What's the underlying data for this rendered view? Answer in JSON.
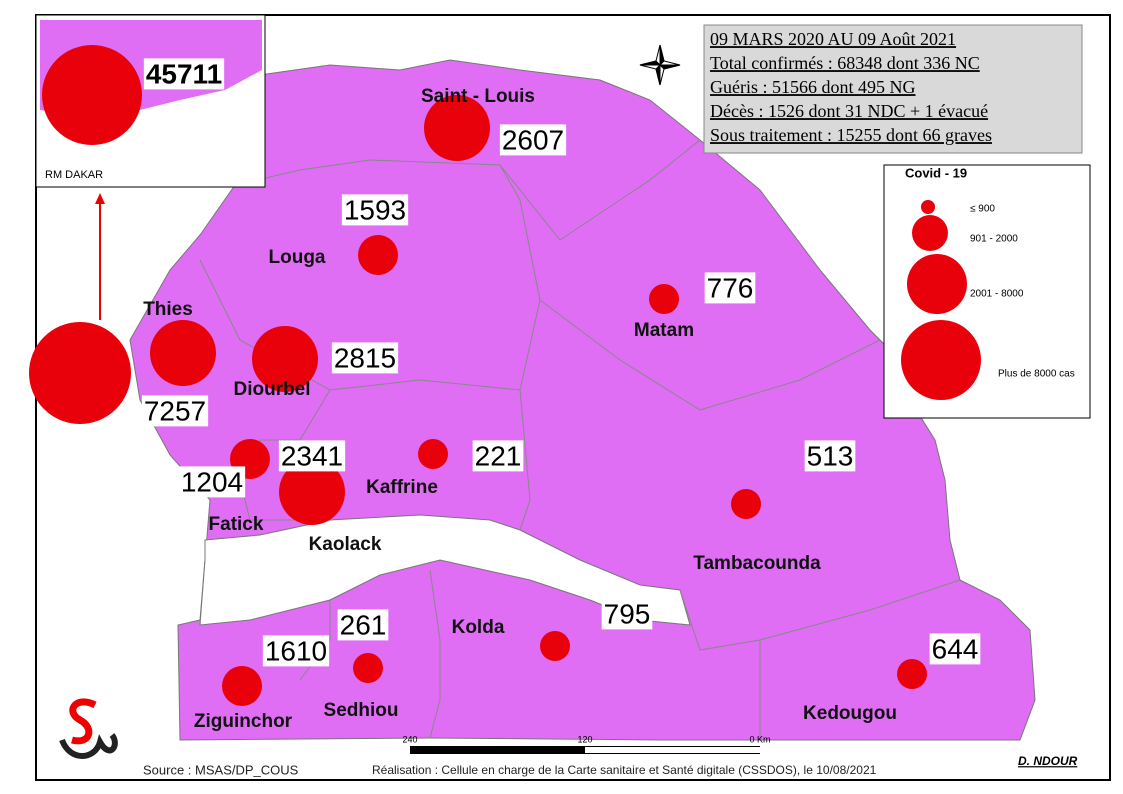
{
  "inset": {
    "label": "RM DAKAR",
    "value": 45711
  },
  "regions": [
    {
      "name": "Saint - Louis",
      "cases": 2607
    },
    {
      "name": "Louga",
      "cases": 1593
    },
    {
      "name": "Thies",
      "cases": 7257
    },
    {
      "name": "Diourbel",
      "cases": 2815
    },
    {
      "name": "Matam",
      "cases": 776
    },
    {
      "name": "Fatick",
      "cases": 1204
    },
    {
      "name": "Kaolack",
      "cases": 2341
    },
    {
      "name": "Kaffrine",
      "cases": 221
    },
    {
      "name": "Tambacounda",
      "cases": 513
    },
    {
      "name": "Kolda",
      "cases": 795
    },
    {
      "name": "Sedhiou",
      "cases": 261
    },
    {
      "name": "Ziguinchor",
      "cases": 1610
    },
    {
      "name": "Kedougou",
      "cases": 644
    }
  ],
  "summary": {
    "lines": [
      "09 MARS 2020 AU 09 Août 2021",
      "Total confirmés : 68348 dont 336 NC",
      "Guéris : 51566 dont  495 NG",
      "Décès : 1526 dont 31 NDC + 1 évacué",
      "Sous traitement : 15255  dont 66  graves"
    ]
  },
  "legend": {
    "title": "Covid - 19",
    "classes": [
      "≤ 900",
      "901 - 2000",
      "2001 - 8000",
      "Plus de 8000 cas"
    ]
  },
  "scale": {
    "labels": [
      "240",
      "120",
      "0 Km"
    ]
  },
  "footer": {
    "source": "Source : MSAS/DP_COUS",
    "credit": "Réalisation : Cellule en charge de la Carte sanitaire et Santé digitale (CSSDOS), le 10/08/2021",
    "author": "D. NDOUR"
  }
}
